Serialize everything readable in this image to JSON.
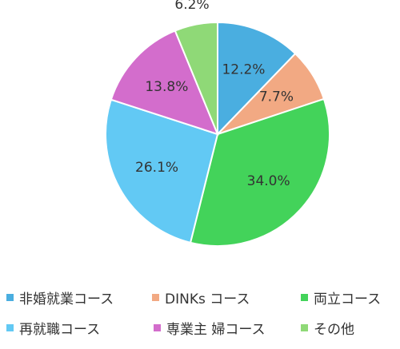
{
  "chart_data": {
    "type": "pie",
    "title": "",
    "slices": [
      {
        "label": "非婚就業コース",
        "value": 12.2,
        "value_label": "12.2%",
        "color": "#4aaee0"
      },
      {
        "label": "DINKs コース",
        "value": 7.7,
        "value_label": "7.7%",
        "color": "#f2a983"
      },
      {
        "label": "両立コース",
        "value": 34.0,
        "value_label": "34.0%",
        "color": "#43d35a"
      },
      {
        "label": "再就職コース",
        "value": 26.1,
        "value_label": "26.1%",
        "color": "#62c9f4"
      },
      {
        "label": "専業主 婦コース",
        "value": 13.8,
        "value_label": "13.8%",
        "color": "#d36dcc"
      },
      {
        "label": "その他",
        "value": 6.2,
        "value_label": "6.2%",
        "color": "#8fd977"
      }
    ],
    "legend_placement": "bottom"
  }
}
